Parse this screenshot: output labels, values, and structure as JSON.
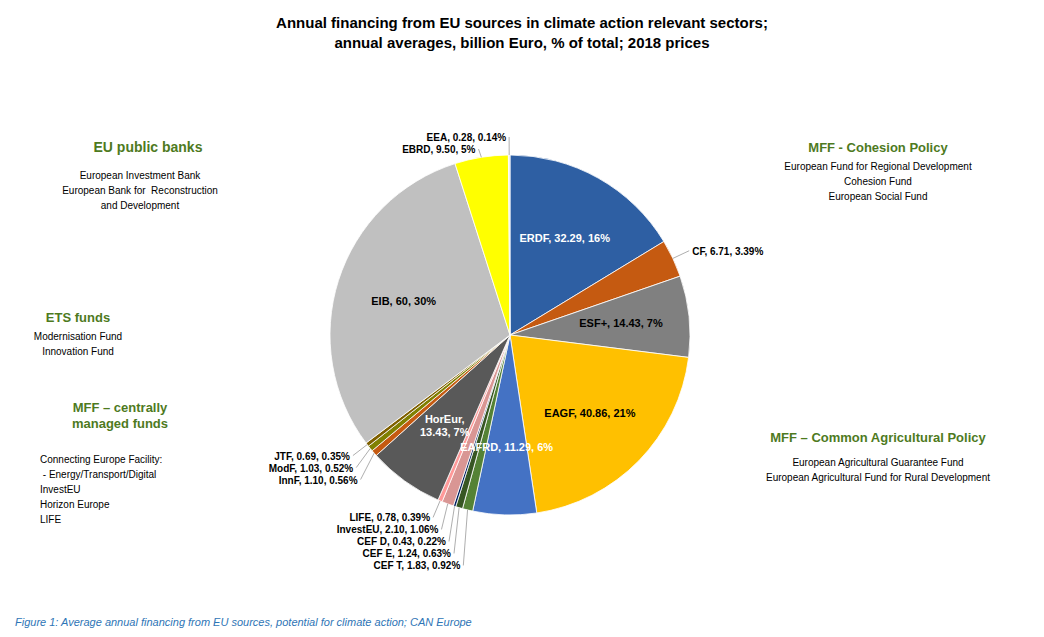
{
  "chart_data": {
    "type": "pie",
    "title": "Annual financing from EU sources in climate action relevant sectors;",
    "subtitle": "annual averages, billion Euro, % of total; 2018 prices",
    "categories": [
      "ERDF",
      "CF",
      "ESF+",
      "EAGF",
      "EAFRD",
      "CEF T",
      "CEF E",
      "CEF D",
      "InvestEU",
      "LIFE",
      "HorEur",
      "InnF",
      "ModF",
      "JTF",
      "EIB",
      "EBRD",
      "EEA"
    ],
    "values": [
      32.29,
      6.71,
      14.43,
      40.86,
      11.29,
      1.83,
      1.24,
      0.43,
      2.1,
      0.78,
      13.43,
      1.1,
      1.03,
      0.69,
      60,
      9.5,
      0.28
    ],
    "value_labels": [
      "ERDF, 32.29, 16%",
      "CF, 6.71, 3.39%",
      "ESF+, 14.43, 7%",
      "EAGF, 40.86, 21%",
      "EAFRD, 11.29, 6%",
      "CEF T, 1.83, 0.92%",
      "CEF E, 1.24, 0.63%",
      "CEF D, 0.43, 0.22%",
      "InvestEU, 2.10, 1.06%",
      "LIFE, 0.78, 0.39%",
      "HorEur,\n13.43, 7%",
      "InnF, 1.10, 0.56%",
      "ModF, 1.03, 0.52%",
      "JTF, 0.69, 0.35%",
      "EIB, 60, 30%",
      "EBRD, 9.50, 5%",
      "EEA, 0.28, 0.14%"
    ],
    "colors": [
      "#2E5FA3",
      "#C55A11",
      "#808080",
      "#FFC000",
      "#4472C4",
      "#548235",
      "#375623",
      "#002060",
      "#D99694",
      "#FF9999",
      "#595959",
      "#C55A11",
      "#808000",
      "#7F6000",
      "#C0C0C0",
      "#FFFF00",
      "#E6E6E6"
    ],
    "annotations": [
      {
        "text": "MFF - Cohesion Policy",
        "color": "#4E7A1E"
      },
      {
        "text": "European Fund for Regional Development\nCohesion Fund\nEuropean Social Fund"
      },
      {
        "text": "MFF – Common Agricultural Policy",
        "color": "#4E7A1E"
      },
      {
        "text": "European Agricultural Guarantee Fund\nEuropean Agricultural Fund for Rural Development"
      },
      {
        "text": "EU public banks",
        "color": "#4E7A1E"
      },
      {
        "text": "European Investment Bank\nEuropean Bank for  Reconstruction\nand Development"
      },
      {
        "text": "ETS funds",
        "color": "#4E7A1E"
      },
      {
        "text": "Modernisation Fund\nInnovation Fund"
      },
      {
        "text": "MFF – centrally\nmanaged funds",
        "color": "#4E7A1E"
      },
      {
        "text": "Connecting Europe Facility:\n - Energy/Transport/Digital\nInvestEU\nHorizon Europe\nLIFE"
      },
      {
        "text": "Figure 1: Average annual financing from EU sources, potential for climate action; CAN Europe",
        "color": "#2E75B6"
      }
    ]
  }
}
